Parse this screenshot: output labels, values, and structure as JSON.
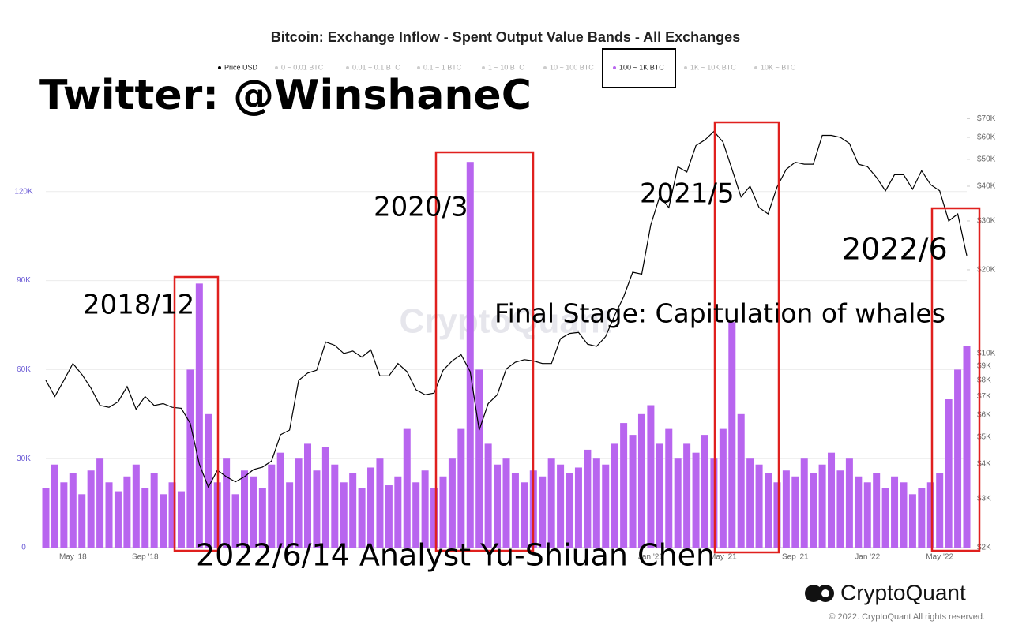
{
  "chart_data": {
    "type": "bar-line",
    "title": "Bitcoin: Exchange Inflow - Spent Output Value Bands - All Exchanges",
    "watermark": "CryptoQuant",
    "logo": "CryptoQuant",
    "copyright": "© 2022. CryptoQuant All rights reserved.",
    "annotations": [
      "Twitter: @WinshaneC",
      "2018/12",
      "2020/3",
      "2021/5",
      "2022/6",
      "Final Stage: Capitulation of whales",
      "2022/6/14 Analyst Yu-Shiuan Chen"
    ],
    "categories": [
      null,
      null,
      null,
      "May '18",
      null,
      null,
      null,
      null,
      null,
      null,
      null,
      "Sep '18",
      null,
      null,
      null,
      null,
      null,
      null,
      null,
      null,
      null,
      null,
      null,
      null,
      null,
      null,
      null,
      null,
      null,
      null,
      null,
      null,
      null,
      null,
      null,
      null,
      null,
      null,
      null,
      null,
      null,
      null,
      null,
      null,
      null,
      null,
      null,
      null,
      null,
      null,
      null,
      null,
      null,
      null,
      null,
      null,
      null,
      null,
      null,
      null,
      null,
      null,
      null,
      null,
      null,
      null,
      null,
      "Jan '21",
      null,
      null,
      null,
      null,
      null,
      null,
      null,
      "May '21",
      null,
      null,
      null,
      null,
      null,
      null,
      null,
      "Sep '21",
      null,
      null,
      null,
      null,
      null,
      null,
      null,
      "Jan '22",
      null,
      null,
      null,
      null,
      null,
      null,
      null,
      "May '22",
      null,
      null,
      null
    ],
    "series": [
      {
        "name": "Price USD",
        "color": "#000000",
        "axis": "y2",
        "values": [
          8000,
          7000,
          8000,
          9200,
          8400,
          7500,
          6500,
          6400,
          6700,
          7600,
          6300,
          7000,
          6500,
          6600,
          6400,
          6350,
          5600,
          4000,
          3300,
          3800,
          3600,
          3450,
          3600,
          3820,
          3900,
          4100,
          5100,
          5300,
          8000,
          8500,
          8700,
          11000,
          10700,
          10000,
          10200,
          9700,
          10300,
          8300,
          8300,
          9200,
          8600,
          7400,
          7100,
          7200,
          8700,
          9400,
          9900,
          8600,
          5300,
          6600,
          7100,
          8800,
          9300,
          9500,
          9400,
          9200,
          9200,
          11300,
          11800,
          11900,
          10800,
          10600,
          11500,
          13700,
          16000,
          19600,
          19300,
          29000,
          36800,
          33500,
          47000,
          45000,
          56000,
          58700,
          63000,
          57700,
          46000,
          36600,
          40000,
          33500,
          31800,
          39800,
          46000,
          48800,
          48000,
          48000,
          61000,
          61000,
          60000,
          57000,
          48000,
          47000,
          43000,
          38500,
          44000,
          44000,
          39000,
          45500,
          40500,
          38500,
          30000,
          31800,
          22500
        ]
      },
      {
        "name": "100 ~ 1K BTC",
        "color": "#b865ef",
        "values": [
          20000,
          28000,
          22000,
          25000,
          18000,
          26000,
          30000,
          22000,
          19000,
          24000,
          28000,
          20000,
          25000,
          18000,
          22000,
          19000,
          60000,
          89000,
          45000,
          22000,
          30000,
          18000,
          26000,
          24000,
          20000,
          28000,
          32000,
          22000,
          30000,
          35000,
          26000,
          34000,
          28000,
          22000,
          25000,
          20000,
          27000,
          30000,
          21000,
          24000,
          40000,
          22000,
          26000,
          20000,
          24000,
          30000,
          40000,
          130000,
          60000,
          35000,
          28000,
          30000,
          25000,
          22000,
          26000,
          24000,
          30000,
          28000,
          25000,
          27000,
          33000,
          30000,
          28000,
          35000,
          42000,
          38000,
          45000,
          48000,
          35000,
          40000,
          30000,
          35000,
          32000,
          38000,
          30000,
          40000,
          76000,
          45000,
          30000,
          28000,
          25000,
          22000,
          26000,
          24000,
          30000,
          25000,
          28000,
          32000,
          26000,
          30000,
          24000,
          22000,
          25000,
          20000,
          24000,
          22000,
          18000,
          20000,
          22000,
          25000,
          50000,
          60000,
          68000
        ]
      }
    ],
    "inactive_series": [
      "0 ~ 0.01 BTC",
      "0.01 ~ 0.1 BTC",
      "0.1 ~ 1 BTC",
      "1 ~ 10 BTC",
      "10 ~ 100 BTC",
      "1K ~ 10K BTC",
      "10K ~ BTC"
    ],
    "ylim": [
      0,
      150000
    ],
    "yticks": [
      0,
      {
        "value": 30000,
        "label": "30K"
      },
      {
        "value": 60000,
        "label": "60K"
      },
      {
        "value": 90000,
        "label": "90K"
      },
      {
        "value": 120000,
        "label": "120K"
      }
    ],
    "y2lim": [
      2000,
      80000
    ],
    "y2log": true,
    "y2ticks": [
      {
        "value": 2000,
        "label": "$2K"
      },
      {
        "value": 3000,
        "label": "$3K"
      },
      {
        "value": 4000,
        "label": "$4K"
      },
      {
        "value": 5000,
        "label": "$5K"
      },
      {
        "value": 6000,
        "label": "$6K"
      },
      {
        "value": 7000,
        "label": "$7K"
      },
      {
        "value": 8000,
        "label": "$8K"
      },
      {
        "value": 9000,
        "label": "$9K"
      },
      {
        "value": 10000,
        "label": "$10K"
      },
      {
        "value": 20000,
        "label": "$20K"
      },
      {
        "value": 30000,
        "label": "$30K"
      },
      {
        "value": 40000,
        "label": "$40K"
      },
      {
        "value": 50000,
        "label": "$50K"
      },
      {
        "value": 60000,
        "label": "$60K"
      },
      {
        "value": 70000,
        "label": "$70K"
      }
    ],
    "grid": true
  }
}
